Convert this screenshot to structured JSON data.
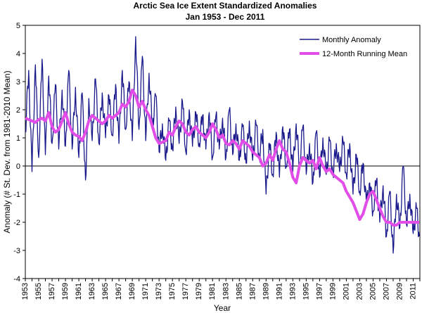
{
  "chart_data": {
    "type": "line",
    "title": "Arctic Sea Ice Extent Standardized Anomalies",
    "subtitle": "Jan 1953 - Dec 2011",
    "xlabel": "Year",
    "ylabel": "Anomaly (# St. Dev. from 1981-2010 Mean)",
    "ylim": [
      -4,
      5
    ],
    "yticks": [
      "5",
      "4",
      "3",
      "2",
      "1",
      "0",
      "-1",
      "-2",
      "-3",
      "-4"
    ],
    "xticks": [
      "1953",
      "1955",
      "1957",
      "1959",
      "1961",
      "1963",
      "1965",
      "1967",
      "1969",
      "1971",
      "1973",
      "1975",
      "1977",
      "1979",
      "1981",
      "1983",
      "1985",
      "1987",
      "1989",
      "1991",
      "1993",
      "1995",
      "1997",
      "1999",
      "2001",
      "2003",
      "2005",
      "2007",
      "2009",
      "2011"
    ],
    "xlim": [
      1953,
      2012
    ],
    "grid": "none",
    "legend": "top-right",
    "series": [
      {
        "name": "Monthly Anomaly",
        "color": "#1a1a8c",
        "note": "monthly values oscillate around the running mean with seasonal swings",
        "x": [
          1953.0,
          1953.5,
          1954.0,
          1954.5,
          1955.0,
          1955.5,
          1956.0,
          1956.5,
          1957.0,
          1957.5,
          1958.0,
          1958.5,
          1959.0,
          1959.5,
          1960.0,
          1960.5,
          1961.0,
          1961.5,
          1962.0,
          1962.5,
          1963.0,
          1963.5,
          1964.0,
          1964.5,
          1965.0,
          1965.5,
          1966.0,
          1966.5,
          1967.0,
          1967.5,
          1968.0,
          1968.5,
          1969.0,
          1969.5,
          1970.0,
          1970.5,
          1971.0,
          1971.5,
          1972.0,
          1972.5,
          1973.0,
          1973.5,
          1974.0,
          1974.5,
          1975.0,
          1975.5,
          1976.0,
          1976.5,
          1977.0,
          1977.5,
          1978.0,
          1978.5,
          1979.0,
          1979.5,
          1980.0,
          1980.5,
          1981.0,
          1981.5,
          1982.0,
          1982.5,
          1983.0,
          1983.5,
          1984.0,
          1984.5,
          1985.0,
          1985.5,
          1986.0,
          1986.5,
          1987.0,
          1987.5,
          1988.0,
          1988.5,
          1989.0,
          1989.5,
          1990.0,
          1990.5,
          1991.0,
          1991.5,
          1992.0,
          1992.5,
          1993.0,
          1993.5,
          1994.0,
          1994.5,
          1995.0,
          1995.5,
          1996.0,
          1996.5,
          1997.0,
          1997.5,
          1998.0,
          1998.5,
          1999.0,
          1999.5,
          2000.0,
          2000.5,
          2001.0,
          2001.5,
          2002.0,
          2002.5,
          2003.0,
          2003.5,
          2004.0,
          2004.5,
          2005.0,
          2005.5,
          2006.0,
          2006.5,
          2007.0,
          2007.5,
          2008.0,
          2008.5,
          2009.0,
          2009.5,
          2010.0,
          2010.5,
          2011.0,
          2011.5,
          2011.9
        ],
        "values": [
          1.2,
          3.4,
          -0.2,
          3.6,
          0.3,
          3.8,
          0.4,
          3.2,
          0.8,
          2.9,
          0.6,
          2.7,
          0.7,
          3.4,
          0.6,
          2.8,
          0.3,
          2.6,
          -0.5,
          2.4,
          0.9,
          3.1,
          0.8,
          2.6,
          1.0,
          2.5,
          1.1,
          2.9,
          0.8,
          3.4,
          1.3,
          3.0,
          0.9,
          4.6,
          1.3,
          3.9,
          0.9,
          3.3,
          1.4,
          2.5,
          0.5,
          1.5,
          0.2,
          1.6,
          0.6,
          2.1,
          0.8,
          2.3,
          0.5,
          2.0,
          0.7,
          1.9,
          0.8,
          1.8,
          0.6,
          1.9,
          0.3,
          1.8,
          0.6,
          1.7,
          0.3,
          2.0,
          0.4,
          1.5,
          0.2,
          1.4,
          0.1,
          1.6,
          0.2,
          1.5,
          0.3,
          1.3,
          -1.0,
          0.8,
          -0.3,
          1.2,
          -0.4,
          1.4,
          0.0,
          1.3,
          -0.2,
          1.5,
          0.0,
          1.4,
          -0.3,
          0.8,
          -0.6,
          1.2,
          -0.4,
          1.0,
          -0.3,
          0.9,
          -0.3,
          0.8,
          -0.2,
          0.9,
          -0.3,
          0.8,
          -1.0,
          0.4,
          -0.9,
          0.1,
          -1.4,
          -0.6,
          -1.6,
          -0.5,
          -2.0,
          -0.7,
          -2.5,
          -0.9,
          -3.1,
          -1.0,
          -2.2,
          0.0,
          -2.1,
          -1.0,
          -2.4,
          -1.5,
          -2.5
        ]
      },
      {
        "name": "12-Month Running Mean",
        "color": "#e24de8",
        "x": [
          1953.0,
          1953.5,
          1954.0,
          1954.5,
          1955.0,
          1955.5,
          1956.0,
          1956.5,
          1957.0,
          1957.5,
          1958.0,
          1958.5,
          1959.0,
          1959.5,
          1960.0,
          1960.5,
          1961.0,
          1961.5,
          1962.0,
          1962.5,
          1963.0,
          1963.5,
          1964.0,
          1964.5,
          1965.0,
          1965.5,
          1966.0,
          1966.5,
          1967.0,
          1967.5,
          1968.0,
          1968.5,
          1969.0,
          1969.5,
          1970.0,
          1970.5,
          1971.0,
          1971.5,
          1972.0,
          1972.5,
          1973.0,
          1973.5,
          1974.0,
          1974.5,
          1975.0,
          1975.5,
          1976.0,
          1976.5,
          1977.0,
          1977.5,
          1978.0,
          1978.5,
          1979.0,
          1979.5,
          1980.0,
          1980.5,
          1981.0,
          1981.5,
          1982.0,
          1982.5,
          1983.0,
          1983.5,
          1984.0,
          1984.5,
          1985.0,
          1985.5,
          1986.0,
          1986.5,
          1987.0,
          1987.5,
          1988.0,
          1988.5,
          1989.0,
          1989.5,
          1990.0,
          1990.5,
          1991.0,
          1991.5,
          1992.0,
          1992.5,
          1993.0,
          1993.5,
          1994.0,
          1994.5,
          1995.0,
          1995.5,
          1996.0,
          1996.5,
          1997.0,
          1997.5,
          1998.0,
          1998.5,
          1999.0,
          1999.5,
          2000.0,
          2000.5,
          2001.0,
          2001.5,
          2002.0,
          2002.5,
          2003.0,
          2003.5,
          2004.0,
          2004.5,
          2005.0,
          2005.5,
          2006.0,
          2006.5,
          2007.0,
          2007.5,
          2008.0,
          2008.5,
          2009.0,
          2009.5,
          2010.0,
          2010.5,
          2011.0,
          2011.5,
          2011.9
        ],
        "values": [
          1.7,
          1.65,
          1.6,
          1.55,
          1.65,
          1.7,
          1.6,
          1.9,
          1.4,
          1.2,
          1.3,
          1.6,
          1.9,
          1.5,
          1.2,
          1.1,
          1.05,
          0.9,
          1.2,
          1.6,
          1.8,
          1.7,
          1.6,
          1.5,
          1.6,
          1.8,
          1.7,
          1.8,
          1.9,
          2.2,
          2.1,
          2.3,
          2.7,
          2.5,
          2.1,
          2.3,
          2.0,
          1.8,
          1.4,
          1.0,
          0.8,
          0.85,
          0.9,
          1.2,
          1.1,
          1.4,
          1.6,
          1.5,
          1.2,
          1.1,
          1.3,
          1.4,
          1.2,
          1.1,
          1.0,
          1.2,
          1.5,
          1.3,
          1.0,
          1.1,
          0.8,
          0.75,
          0.9,
          0.8,
          0.6,
          0.9,
          0.8,
          0.7,
          0.5,
          0.4,
          0.3,
          0.0,
          0.1,
          0.4,
          0.2,
          0.6,
          0.9,
          0.6,
          0.5,
          0.1,
          -0.4,
          -0.6,
          0.0,
          0.3,
          0.2,
          0.1,
          0.2,
          -0.1,
          0.3,
          0.0,
          -0.2,
          -0.1,
          -0.3,
          -0.4,
          -0.5,
          -0.6,
          -0.9,
          -1.1,
          -1.3,
          -1.6,
          -1.9,
          -1.7,
          -1.3,
          -1.0,
          -0.9,
          -1.2,
          -1.5,
          -1.8,
          -2.0,
          -2.0,
          -2.1,
          -2.1,
          -2.0,
          -2.0,
          -2.0,
          -2.0,
          -2.0,
          -2.0,
          -2.0
        ]
      }
    ]
  }
}
